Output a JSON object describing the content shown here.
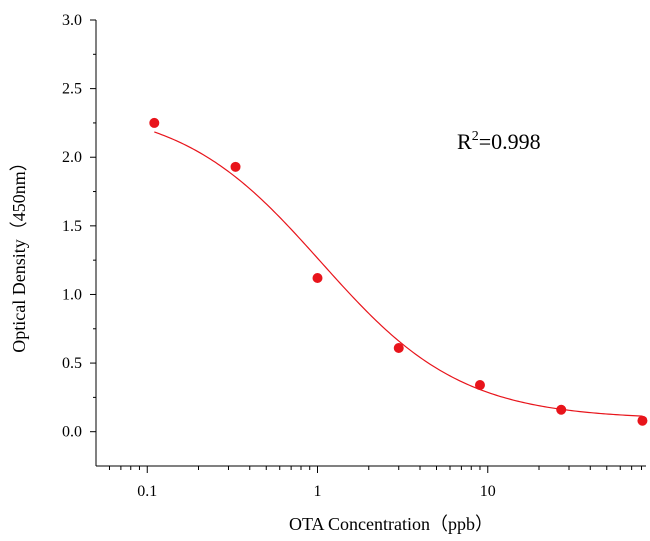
{
  "chart_data": {
    "type": "scatter",
    "xlabel": "OTA Concentration（ppb）",
    "ylabel": "Optical Density（450nm）",
    "x_scale": "log",
    "xlim": [
      0.05,
      85
    ],
    "ylim": [
      -0.25,
      3.0
    ],
    "x_ticks": [
      0.1,
      1,
      10
    ],
    "x_tick_labels": [
      "0.1",
      "1",
      "10"
    ],
    "y_ticks": [
      0.0,
      0.5,
      1.0,
      1.5,
      2.0,
      2.5,
      3.0
    ],
    "y_tick_labels": [
      "0.0",
      "0.5",
      "1.0",
      "1.5",
      "2.0",
      "2.5",
      "3.0"
    ],
    "grid": false,
    "colors": {
      "series": "#e8141b",
      "axis": "#000000"
    },
    "series": [
      {
        "x": [
          0.11,
          0.33,
          1.0,
          3.0,
          9.0,
          27.0,
          81.0
        ],
        "y": [
          2.25,
          1.93,
          1.12,
          0.61,
          0.34,
          0.16,
          0.08
        ]
      }
    ],
    "fit": {
      "type": "4PL",
      "top": 2.38,
      "bottom": 0.09,
      "ic50": 1.05,
      "hill": 1.05
    },
    "annotation": {
      "base": "R",
      "sup": "2",
      "rest": "=0.998"
    }
  }
}
